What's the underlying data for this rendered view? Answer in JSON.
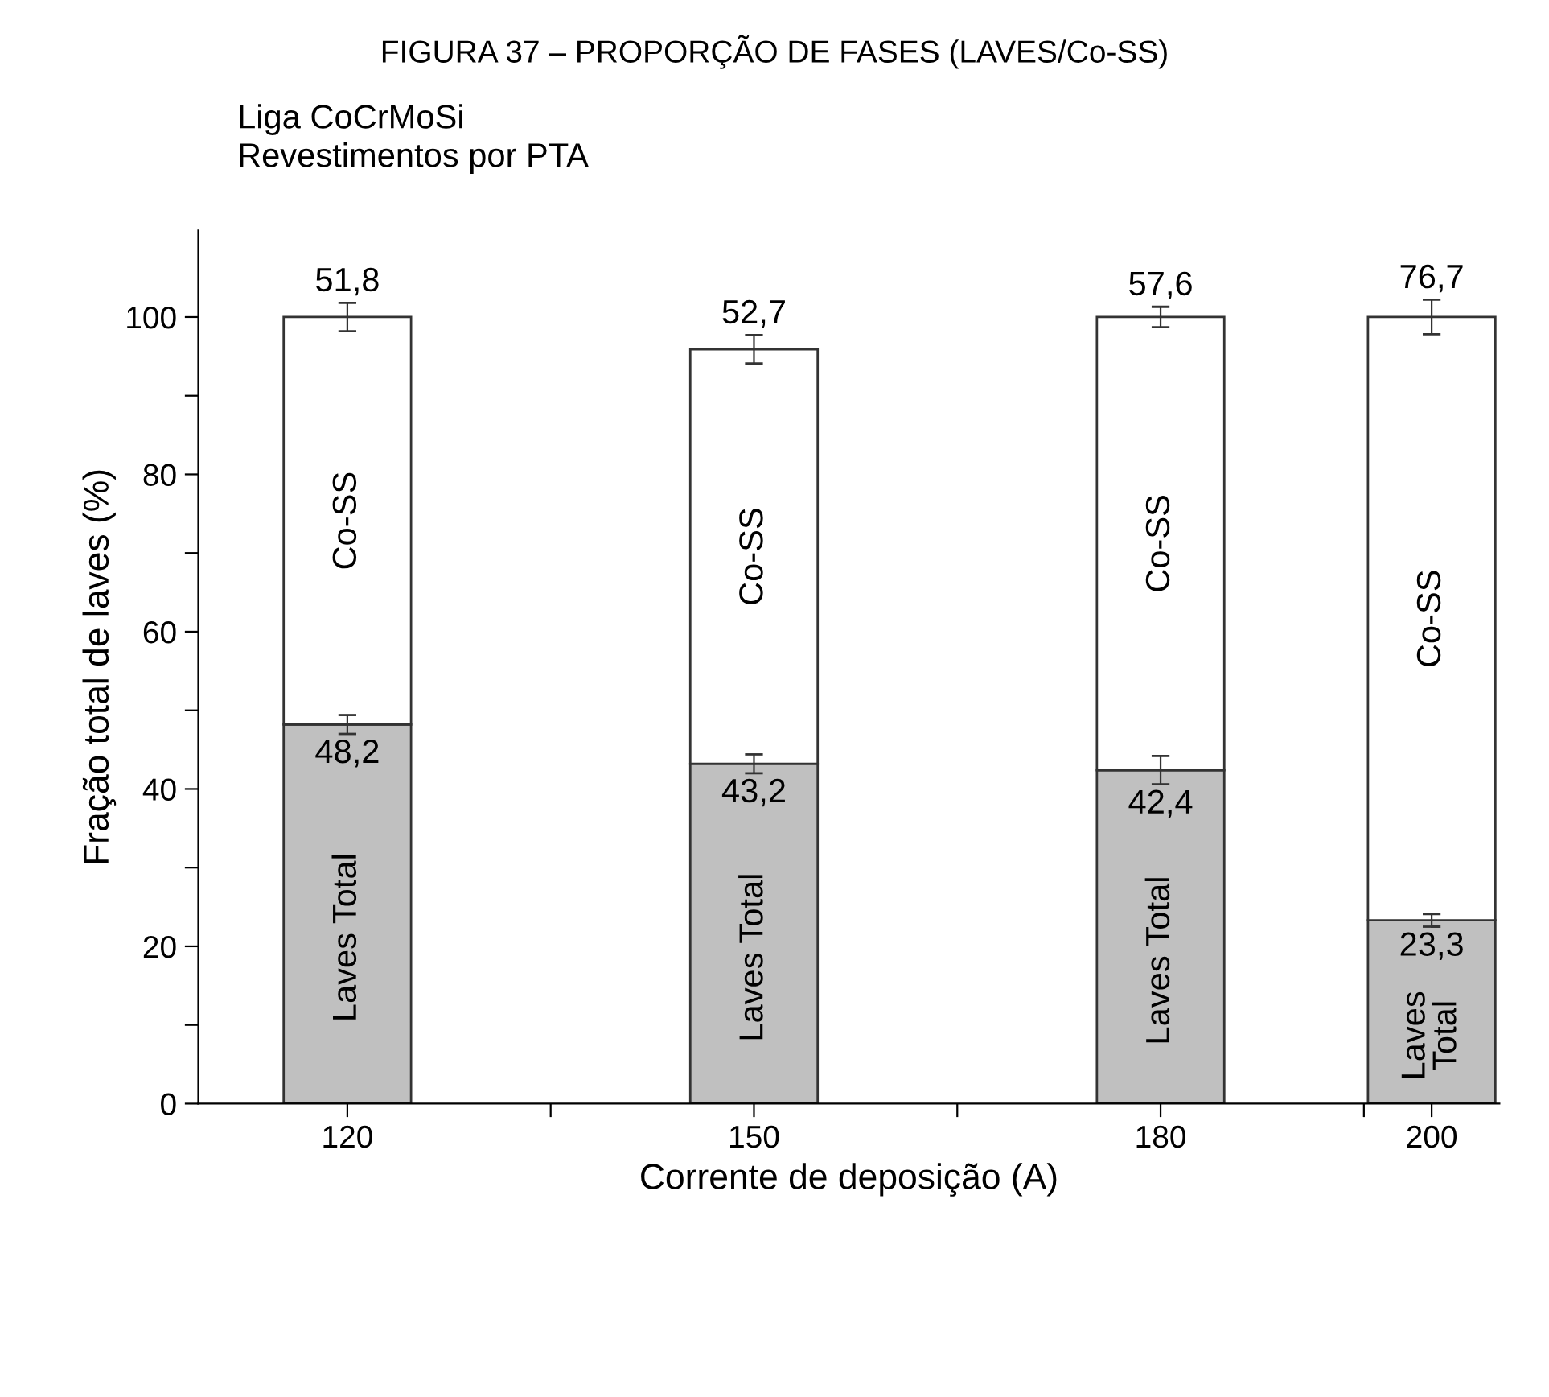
{
  "chart_data": {
    "type": "bar",
    "stacked": true,
    "title": "FIGURA 37 – PROPORÇÃO DE FASES (LAVES/Co-SS)",
    "subtitle": "Liga CoCrMoSi\nRevestimentos por PTA",
    "xlabel": "Corrente de deposição (A)",
    "ylabel": "Fração total de laves (%)",
    "x": [
      120,
      150,
      180,
      200
    ],
    "series": [
      {
        "name": "Laves Total",
        "color": "#c0c0c0",
        "values": [
          48.2,
          43.2,
          42.4,
          23.3
        ],
        "errors": [
          1.2,
          1.2,
          1.8,
          0.8
        ],
        "value_labels": [
          "48,2",
          "43,2",
          "42,4",
          "23,3"
        ]
      },
      {
        "name": "Co-SS",
        "color": "#ffffff",
        "values": [
          51.8,
          52.7,
          57.6,
          76.7
        ],
        "errors": [
          1.8,
          1.8,
          1.3,
          2.2
        ],
        "value_labels": [
          "51,8",
          "52,7",
          "57,6",
          "76,7"
        ]
      }
    ],
    "xlim": [
      109,
      205
    ],
    "xticks": [
      120,
      {
        "value": 135,
        "label": null
      },
      150,
      {
        "value": 165,
        "label": null
      },
      180,
      {
        "value": 195,
        "label": null
      },
      200
    ],
    "ylim": [
      0,
      111
    ],
    "yticks": [
      0,
      {
        "value": 10,
        "label": null
      },
      20,
      {
        "value": 30,
        "label": null
      },
      40,
      {
        "value": 50,
        "label": null
      },
      60,
      {
        "value": 70,
        "label": null
      },
      80,
      {
        "value": 90,
        "label": null
      },
      100
    ],
    "grid": false,
    "legend": false
  }
}
